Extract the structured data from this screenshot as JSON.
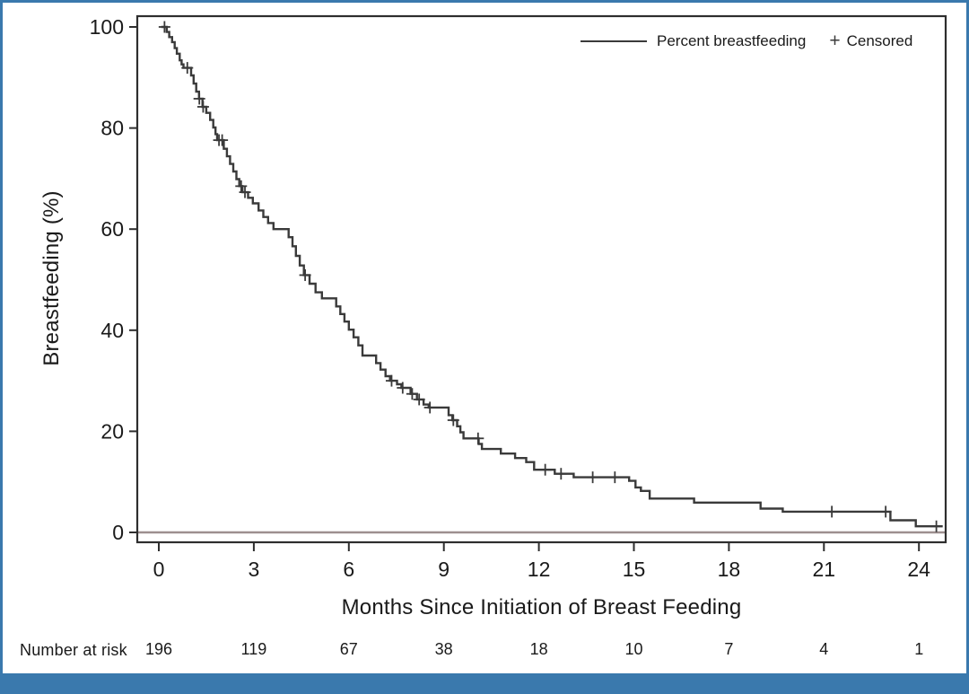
{
  "chart_data": {
    "type": "line",
    "subtype": "kaplan-meier-step-curve",
    "title": "",
    "xlabel": "Months Since Initiation of Breast Feeding",
    "ylabel": "Breastfeeding (%)",
    "x_ticks": [
      0,
      3,
      6,
      9,
      12,
      15,
      18,
      21,
      24
    ],
    "y_ticks": [
      0,
      20,
      40,
      60,
      80,
      100
    ],
    "xlim": [
      -0.68,
      25.0
    ],
    "ylim": [
      -2.0,
      102.2
    ],
    "grid": false,
    "reference_line_y": 0,
    "legend": {
      "position": "top-right-inside",
      "series_label": "Percent breastfeeding",
      "censored_symbol": "+",
      "censored_label": "Censored"
    },
    "series": [
      {
        "name": "Percent breastfeeding",
        "start": [
          0.08,
          100
        ],
        "steps": [
          [
            0.25,
            99.0
          ],
          [
            0.33,
            98.0
          ],
          [
            0.42,
            97.0
          ],
          [
            0.5,
            95.8
          ],
          [
            0.57,
            94.7
          ],
          [
            0.66,
            93.4
          ],
          [
            0.72,
            92.6
          ],
          [
            0.78,
            91.9
          ],
          [
            1.02,
            90.4
          ],
          [
            1.1,
            88.8
          ],
          [
            1.18,
            87.2
          ],
          [
            1.27,
            85.8
          ],
          [
            1.38,
            84.2
          ],
          [
            1.5,
            83.0
          ],
          [
            1.62,
            81.6
          ],
          [
            1.72,
            80.1
          ],
          [
            1.79,
            78.8
          ],
          [
            1.84,
            77.6
          ],
          [
            2.05,
            75.9
          ],
          [
            2.15,
            74.4
          ],
          [
            2.25,
            72.9
          ],
          [
            2.35,
            71.4
          ],
          [
            2.45,
            69.9
          ],
          [
            2.54,
            68.5
          ],
          [
            2.64,
            67.3
          ],
          [
            2.82,
            66.2
          ],
          [
            2.97,
            65.1
          ],
          [
            3.15,
            63.7
          ],
          [
            3.3,
            62.4
          ],
          [
            3.45,
            61.2
          ],
          [
            3.62,
            60.0
          ],
          [
            4.1,
            58.4
          ],
          [
            4.22,
            56.6
          ],
          [
            4.33,
            54.7
          ],
          [
            4.45,
            52.8
          ],
          [
            4.58,
            50.9
          ],
          [
            4.76,
            49.2
          ],
          [
            4.95,
            47.5
          ],
          [
            5.15,
            46.3
          ],
          [
            5.6,
            44.7
          ],
          [
            5.73,
            43.2
          ],
          [
            5.86,
            41.7
          ],
          [
            6.0,
            40.1
          ],
          [
            6.15,
            38.6
          ],
          [
            6.3,
            37.0
          ],
          [
            6.43,
            35.0
          ],
          [
            6.86,
            33.5
          ],
          [
            7.0,
            32.2
          ],
          [
            7.16,
            30.9
          ],
          [
            7.3,
            30.0
          ],
          [
            7.52,
            29.3
          ],
          [
            7.66,
            28.6
          ],
          [
            7.95,
            27.4
          ],
          [
            8.15,
            26.3
          ],
          [
            8.36,
            25.3
          ],
          [
            8.52,
            24.7
          ],
          [
            9.15,
            23.2
          ],
          [
            9.27,
            22.2
          ],
          [
            9.42,
            21.0
          ],
          [
            9.52,
            19.8
          ],
          [
            9.62,
            18.6
          ],
          [
            10.1,
            17.5
          ],
          [
            10.2,
            16.5
          ],
          [
            10.8,
            15.6
          ],
          [
            11.25,
            14.7
          ],
          [
            11.6,
            13.9
          ],
          [
            11.85,
            12.4
          ],
          [
            12.5,
            11.6
          ],
          [
            13.1,
            10.9
          ],
          [
            14.85,
            10.2
          ],
          [
            15.05,
            8.9
          ],
          [
            15.22,
            8.2
          ],
          [
            15.5,
            6.7
          ],
          [
            16.9,
            5.9
          ],
          [
            19.0,
            4.7
          ],
          [
            19.7,
            4.1
          ],
          [
            23.1,
            2.4
          ],
          [
            23.9,
            1.2
          ]
        ],
        "end_time": 24.75
      }
    ],
    "censored": [
      [
        0.18,
        100
      ],
      [
        0.9,
        91.9
      ],
      [
        1.28,
        85.8
      ],
      [
        1.4,
        84.2
      ],
      [
        1.9,
        77.6
      ],
      [
        2.0,
        77.6
      ],
      [
        2.6,
        68.5
      ],
      [
        2.72,
        67.3
      ],
      [
        4.62,
        50.9
      ],
      [
        7.35,
        30.0
      ],
      [
        7.7,
        28.6
      ],
      [
        8.0,
        27.4
      ],
      [
        8.22,
        26.3
      ],
      [
        8.56,
        24.7
      ],
      [
        9.3,
        22.2
      ],
      [
        10.08,
        18.6
      ],
      [
        12.2,
        12.4
      ],
      [
        12.7,
        11.6
      ],
      [
        13.7,
        10.9
      ],
      [
        14.4,
        10.9
      ],
      [
        21.25,
        4.1
      ],
      [
        22.95,
        4.1
      ],
      [
        24.55,
        1.2
      ]
    ],
    "risk_table": {
      "label": "Number at risk",
      "times": [
        0,
        3,
        6,
        9,
        12,
        15,
        18,
        21,
        24
      ],
      "counts": [
        196,
        119,
        67,
        38,
        18,
        10,
        7,
        4,
        1
      ]
    },
    "colors": {
      "curve": "#3a3a3a",
      "frame": "#2e2e2e",
      "text": "#1a1a1a",
      "reference_line": "#9d8f8f",
      "border_blue": "#3a79ad"
    }
  }
}
